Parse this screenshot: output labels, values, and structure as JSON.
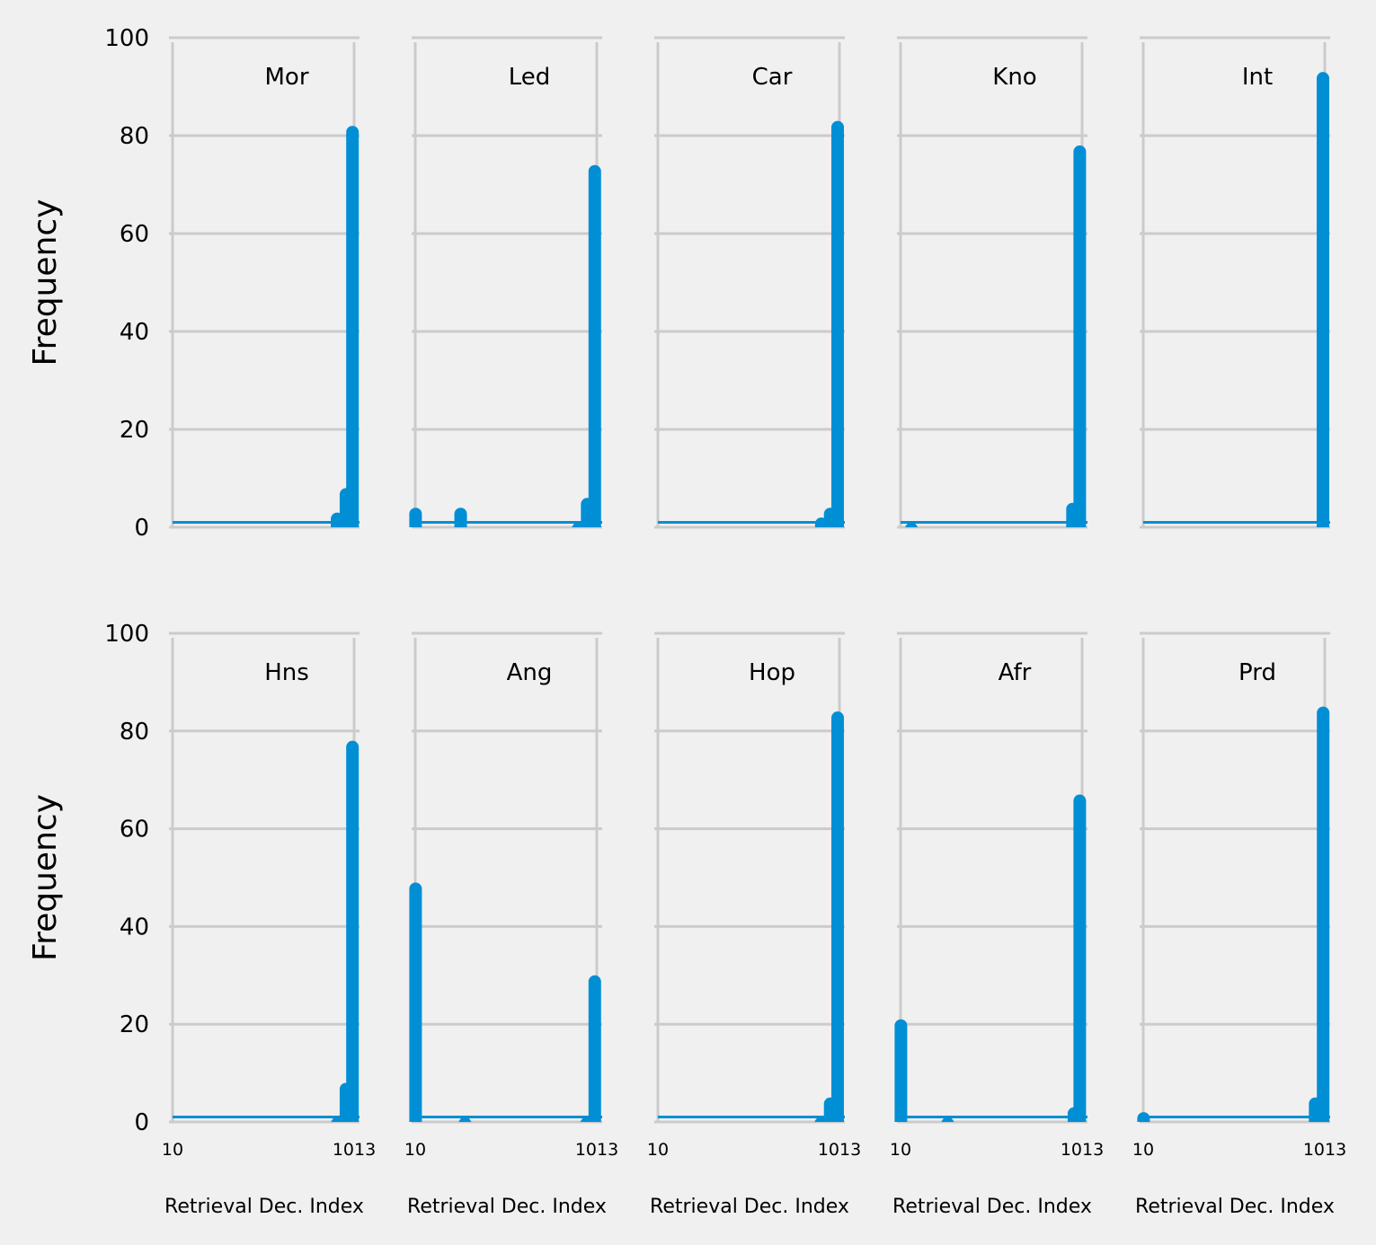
{
  "chart_data": {
    "type": "bar",
    "ylabel": "Frequency",
    "xlabel": "Retrieval Dec. Index",
    "ylim": [
      0,
      100
    ],
    "yticks": [
      "0",
      "20",
      "40",
      "60",
      "80",
      "100"
    ],
    "xtick_labels": [
      "10",
      "1013"
    ],
    "grid": true,
    "panels": [
      {
        "title": "Mor",
        "bars": [
          {
            "x": 919,
            "value": 3
          },
          {
            "x": 968,
            "value": 8
          },
          {
            "x": 1004,
            "value": 82
          }
        ]
      },
      {
        "title": "Led",
        "bars": [
          {
            "x": 12,
            "value": 4
          },
          {
            "x": 261,
            "value": 4
          },
          {
            "x": 910,
            "value": 1
          },
          {
            "x": 960,
            "value": 6
          },
          {
            "x": 1002,
            "value": 74
          }
        ]
      },
      {
        "title": "Car",
        "bars": [
          {
            "x": 913,
            "value": 2
          },
          {
            "x": 962,
            "value": 4
          },
          {
            "x": 1003,
            "value": 83
          }
        ]
      },
      {
        "title": "Kno",
        "bars": [
          {
            "x": 70,
            "value": 1
          },
          {
            "x": 960,
            "value": 5
          },
          {
            "x": 1000,
            "value": 78
          }
        ]
      },
      {
        "title": "Int",
        "bars": [
          {
            "x": 1003,
            "value": 93
          }
        ]
      },
      {
        "title": "Hns",
        "bars": [
          {
            "x": 920,
            "value": 1
          },
          {
            "x": 968,
            "value": 8
          },
          {
            "x": 1004,
            "value": 78
          }
        ]
      },
      {
        "title": "Ang",
        "bars": [
          {
            "x": 12,
            "value": 49
          },
          {
            "x": 285,
            "value": 1
          },
          {
            "x": 957,
            "value": 1
          },
          {
            "x": 1002,
            "value": 30
          }
        ]
      },
      {
        "title": "Hop",
        "bars": [
          {
            "x": 910,
            "value": 1
          },
          {
            "x": 962,
            "value": 5
          },
          {
            "x": 1003,
            "value": 84
          }
        ]
      },
      {
        "title": "Afr",
        "bars": [
          {
            "x": 12,
            "value": 21
          },
          {
            "x": 270,
            "value": 1
          },
          {
            "x": 968,
            "value": 3
          },
          {
            "x": 1000,
            "value": 67
          }
        ]
      },
      {
        "title": "Prd",
        "bars": [
          {
            "x": 12,
            "value": 2
          },
          {
            "x": 960,
            "value": 5
          },
          {
            "x": 1004,
            "value": 85
          }
        ]
      }
    ]
  }
}
